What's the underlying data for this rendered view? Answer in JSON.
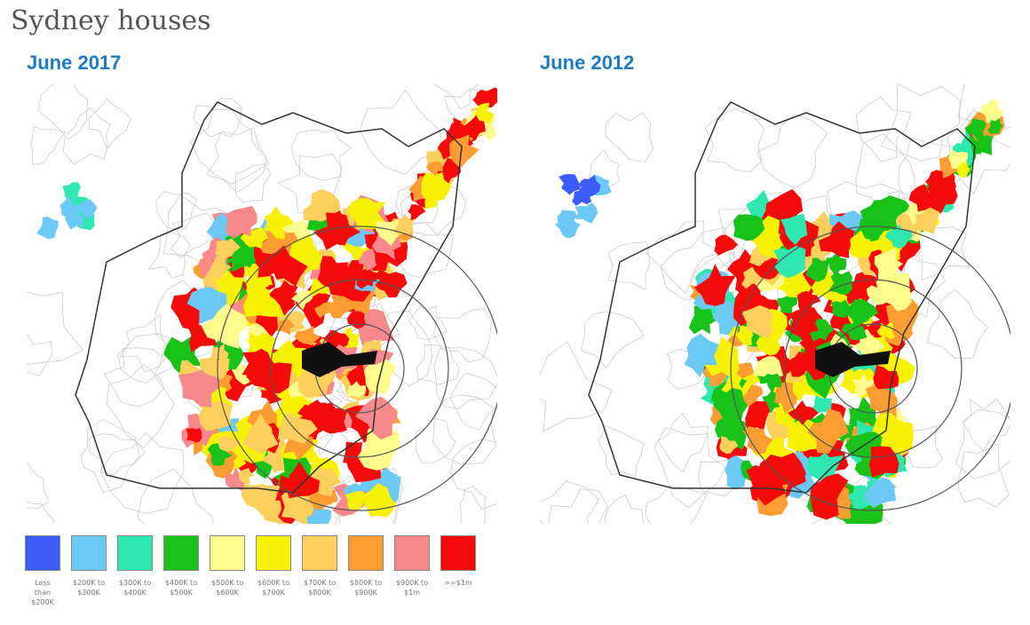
{
  "title": "Sydney houses",
  "maps": [
    {
      "title": "June 2017"
    },
    {
      "title": "June 2012"
    }
  ],
  "legend": [
    {
      "label": "Less than $200K",
      "color": "#3b5bfa"
    },
    {
      "label": "$200K to $300K",
      "color": "#6cc8f5"
    },
    {
      "label": "$300K to $400K",
      "color": "#2ee8b0"
    },
    {
      "label": "$400K to $500K",
      "color": "#19c219"
    },
    {
      "label": "$500K to $600K",
      "color": "#fdfb8c"
    },
    {
      "label": "$600K to $700K",
      "color": "#f7f203"
    },
    {
      "label": "$700K to $800K",
      "color": "#fdcf5d"
    },
    {
      "label": "$800K to $900K",
      "color": "#fb9d32"
    },
    {
      "label": "$900K to $1m",
      "color": "#f7888b"
    },
    {
      "label": ">=$1m",
      "color": "#f50a0a"
    }
  ]
}
